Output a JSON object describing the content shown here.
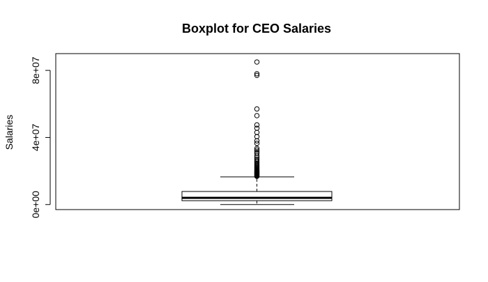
{
  "chart_data": {
    "type": "boxplot",
    "title": "Boxplot for CEO Salaries",
    "xlabel": "",
    "ylabel": "Salaries",
    "ylim": [
      -3000000,
      90000000
    ],
    "y_ticks": [
      0,
      40000000,
      80000000
    ],
    "y_tick_labels": [
      "0e+00",
      "4e+07",
      "8e+07"
    ],
    "grid": false,
    "legend": "none",
    "box": {
      "whisker_low": 0,
      "q1": 2300000,
      "median": 4000000,
      "q3": 7800000,
      "whisker_high": 16500000
    },
    "outliers": [
      16800000,
      17100000,
      17400000,
      17700000,
      18000000,
      18300000,
      18600000,
      18900000,
      19200000,
      19500000,
      19800000,
      20100000,
      20500000,
      20900000,
      21300000,
      21800000,
      22300000,
      22800000,
      23400000,
      24000000,
      24700000,
      25400000,
      26200000,
      27000000,
      28000000,
      29000000,
      30500000,
      31500000,
      32500000,
      33500000,
      36500000,
      38000000,
      40500000,
      43000000,
      45500000,
      47500000,
      53000000,
      57000000,
      77000000,
      78000000,
      85000000
    ]
  }
}
